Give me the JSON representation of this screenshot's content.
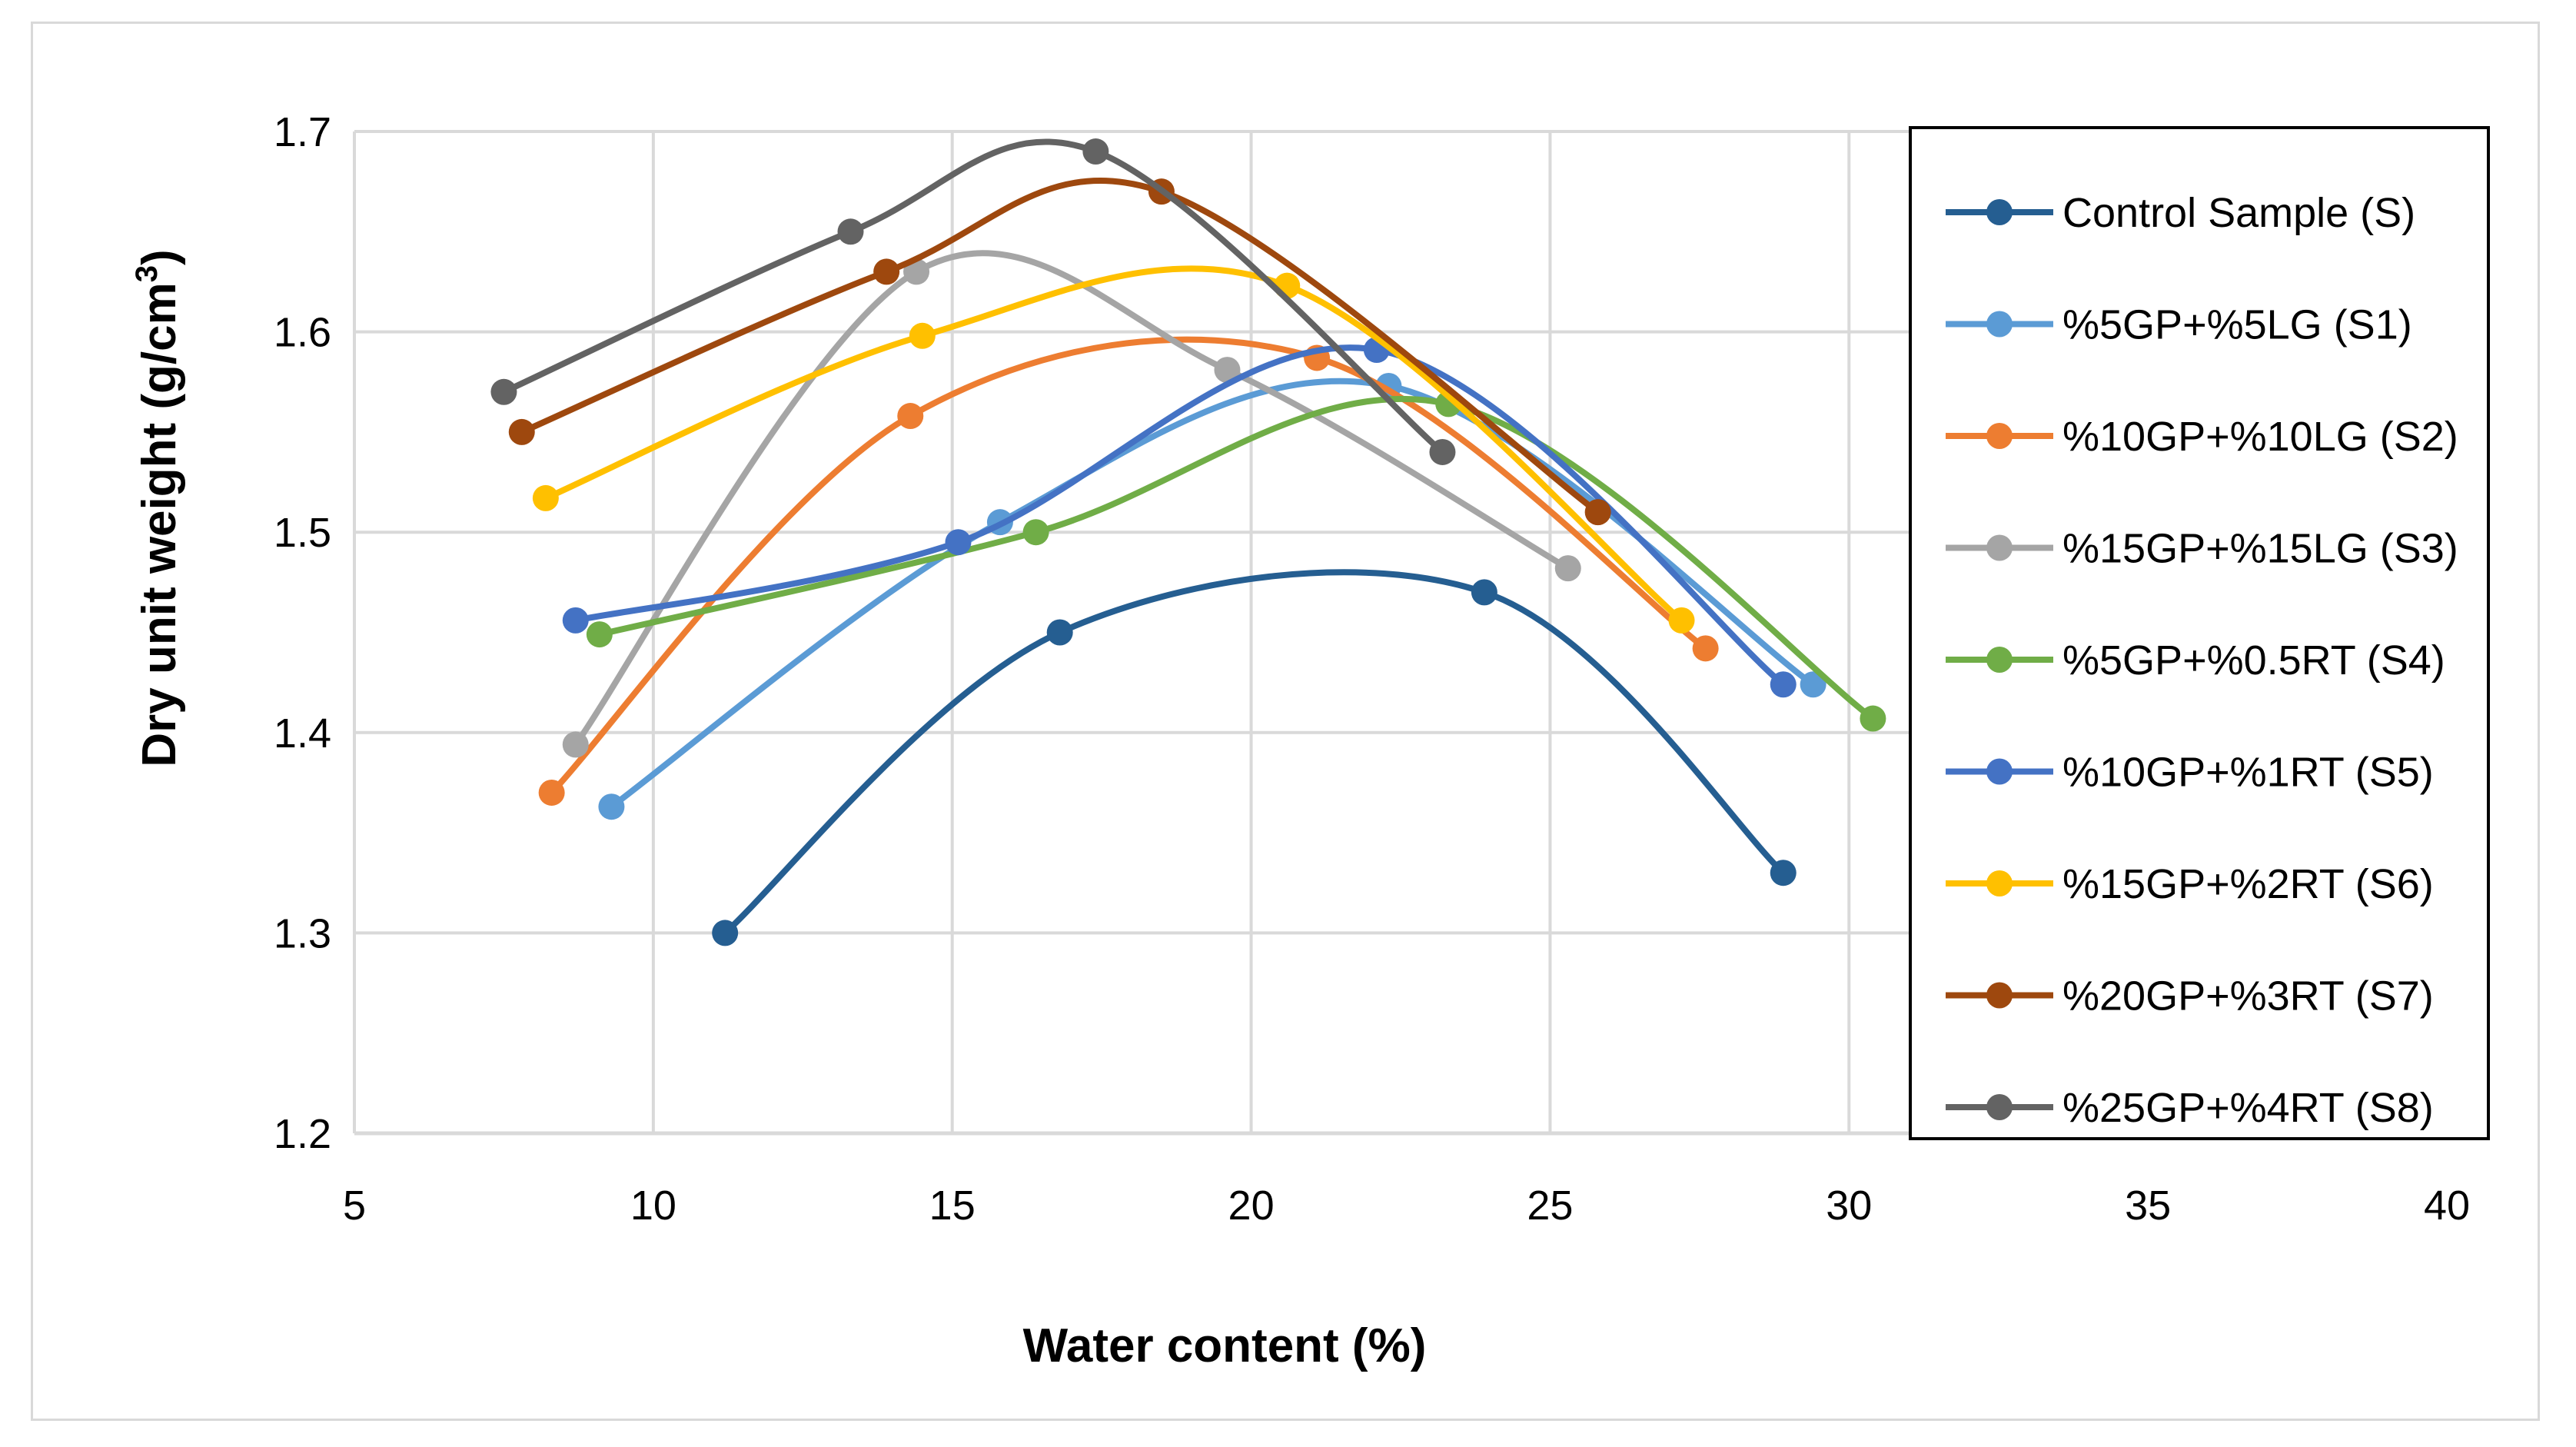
{
  "chart_data": {
    "type": "scatter",
    "title": "",
    "xlabel": "Water content (%)",
    "ylabel_main": "Dry unit weight (g/cm",
    "ylabel_sup": "3",
    "ylabel_close": ")",
    "xlim": [
      5,
      40
    ],
    "ylim": [
      1.2,
      1.7
    ],
    "xticks": [
      5,
      10,
      15,
      20,
      25,
      30,
      35,
      40
    ],
    "yticks": [
      1.2,
      1.3,
      1.4,
      1.5,
      1.6,
      1.7
    ],
    "xtick_labels": [
      "5",
      "10",
      "15",
      "20",
      "25",
      "30",
      "35",
      "40"
    ],
    "ytick_labels": [
      "1.2",
      "1.3",
      "1.4",
      "1.5",
      "1.6",
      "1.7"
    ],
    "grid": true,
    "legend_position": "right",
    "series": [
      {
        "name": "Control Sample (S)",
        "color": "#255E91",
        "x": [
          11.2,
          16.8,
          23.9,
          28.9
        ],
        "y": [
          1.3,
          1.45,
          1.47,
          1.33
        ]
      },
      {
        "name": "%5GP+%5LG (S1)",
        "color": "#5B9BD5",
        "x": [
          9.3,
          15.8,
          22.3,
          29.4
        ],
        "y": [
          1.363,
          1.505,
          1.573,
          1.424
        ]
      },
      {
        "name": "%10GP+%10LG (S2)",
        "color": "#ED7D31",
        "x": [
          8.3,
          14.3,
          21.1,
          27.6
        ],
        "y": [
          1.37,
          1.558,
          1.587,
          1.442
        ]
      },
      {
        "name": "%15GP+%15LG (S3)",
        "color": "#A5A5A5",
        "x": [
          8.7,
          14.4,
          19.6,
          25.3
        ],
        "y": [
          1.394,
          1.63,
          1.581,
          1.482
        ]
      },
      {
        "name": "%5GP+%0.5RT (S4)",
        "color": "#70AD47",
        "x": [
          9.1,
          16.4,
          23.3,
          30.4
        ],
        "y": [
          1.449,
          1.5,
          1.564,
          1.407
        ]
      },
      {
        "name": "%10GP+%1RT (S5)",
        "color": "#4472C4",
        "x": [
          8.7,
          15.1,
          22.1,
          28.9
        ],
        "y": [
          1.456,
          1.495,
          1.591,
          1.424
        ]
      },
      {
        "name": "%15GP+%2RT (S6)",
        "color": "#FFC000",
        "x": [
          8.2,
          14.5,
          20.6,
          27.2
        ],
        "y": [
          1.517,
          1.598,
          1.623,
          1.456
        ]
      },
      {
        "name": "%20GP+%3RT (S7)",
        "color": "#9E480E",
        "x": [
          7.8,
          13.9,
          18.5,
          25.8
        ],
        "y": [
          1.55,
          1.63,
          1.67,
          1.51
        ]
      },
      {
        "name": "%25GP+%4RT (S8)",
        "color": "#636363",
        "x": [
          7.5,
          13.3,
          17.4,
          23.2
        ],
        "y": [
          1.57,
          1.65,
          1.69,
          1.54
        ]
      }
    ]
  }
}
